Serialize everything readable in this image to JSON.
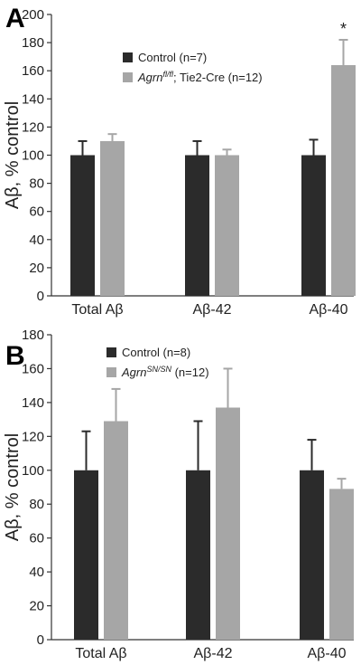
{
  "colors": {
    "control": "#2b2b2b",
    "mutant": "#a6a6a6",
    "axis": "#333333"
  },
  "chart_data": [
    {
      "type": "bar",
      "panel_label": "A",
      "ylabel": "Aβ, % control",
      "ylim": [
        0,
        200
      ],
      "yticks": [
        0,
        20,
        40,
        60,
        80,
        100,
        120,
        140,
        160,
        180,
        200
      ],
      "categories": [
        "Total Aβ",
        "Aβ-42",
        "Aβ-40"
      ],
      "legend_position": "top-center",
      "series": [
        {
          "name": "Control (n=7)",
          "name_parts": {
            "gene": "",
            "sup": "",
            "rest": "Control (n=7)"
          },
          "values": [
            100,
            100,
            100
          ],
          "error": [
            10,
            10,
            11
          ]
        },
        {
          "name": "Agrnfl/fl; Tie2-Cre (n=12)",
          "name_parts": {
            "gene": "Agrn",
            "sup": "fl/fl",
            "rest": "; Tie2-Cre (n=12)"
          },
          "values": [
            110,
            100,
            164
          ],
          "error": [
            5,
            4,
            18
          ]
        }
      ],
      "annotations": [
        {
          "text": "*",
          "category_index": 2,
          "series_index": 1
        }
      ]
    },
    {
      "type": "bar",
      "panel_label": "B",
      "ylabel": "Aβ, % control",
      "ylim": [
        0,
        180
      ],
      "yticks": [
        0,
        20,
        40,
        60,
        80,
        100,
        120,
        140,
        160,
        180
      ],
      "categories": [
        "Total Aβ",
        "Aβ-42",
        "Aβ-40"
      ],
      "legend_position": "top-left",
      "series": [
        {
          "name": "Control (n=8)",
          "name_parts": {
            "gene": "",
            "sup": "",
            "rest": "Control (n=8)"
          },
          "values": [
            100,
            100,
            100
          ],
          "error": [
            23,
            29,
            18
          ]
        },
        {
          "name": "AgrnSN/SN (n=12)",
          "name_parts": {
            "gene": "Agrn",
            "sup": "SN/SN",
            "rest": " (n=12)"
          },
          "values": [
            129,
            137,
            89
          ],
          "error": [
            19,
            23,
            6
          ]
        }
      ],
      "annotations": []
    }
  ]
}
